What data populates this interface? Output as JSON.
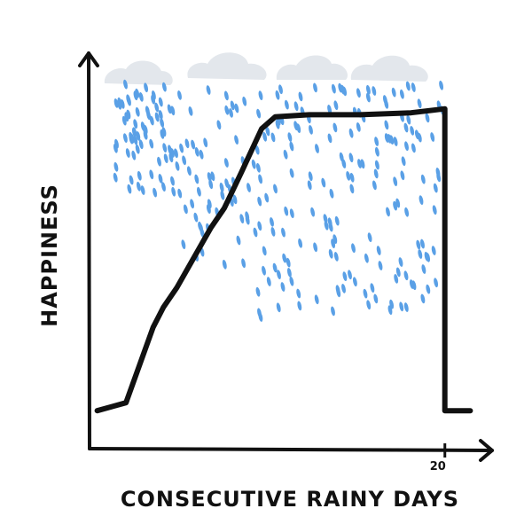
{
  "chart_data": {
    "type": "line",
    "title": "",
    "xlabel": "CONSECUTIVE RAINY DAYS",
    "ylabel": "HAPPINESS",
    "x_ticks": [
      20
    ],
    "xlim": [
      -1,
      22
    ],
    "ylim": [
      0,
      10
    ],
    "grid": false,
    "legend": "none",
    "series": [
      {
        "x": [
          -0.5,
          1.2,
          2.8,
          3.4,
          4.2,
          5.0,
          6.2,
          7.0,
          8.0,
          9.2,
          10.0,
          12.0,
          15.0,
          18.0,
          20.0,
          20.0,
          21.5
        ],
        "y": [
          1.0,
          1.2,
          3.1,
          3.6,
          4.1,
          4.7,
          5.6,
          6.1,
          7.0,
          8.1,
          8.4,
          8.45,
          8.45,
          8.5,
          8.6,
          1.0,
          1.0
        ]
      }
    ],
    "decorations": [
      "clouds",
      "rain"
    ],
    "colors": {
      "line": "#111111",
      "axes": "#111111",
      "rain": "#5aa0e6",
      "cloud": "#e3e7ec"
    }
  }
}
